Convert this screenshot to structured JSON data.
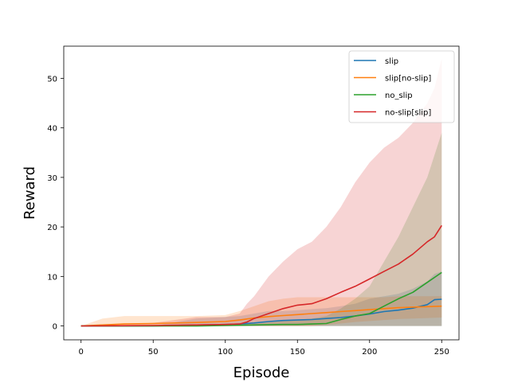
{
  "chart_data": {
    "type": "line",
    "title": "",
    "xlabel": "Episode",
    "ylabel": "Reward",
    "xlim": [
      -12,
      262
    ],
    "ylim": [
      -2.8,
      56.5
    ],
    "xticks": [
      0,
      50,
      100,
      150,
      200,
      250
    ],
    "yticks": [
      0,
      10,
      20,
      30,
      40,
      50
    ],
    "grid": false,
    "legend_position": "top-right",
    "series": [
      {
        "name": "slip",
        "color": "#1f77b4",
        "x": [
          0,
          20,
          50,
          80,
          100,
          110,
          120,
          130,
          140,
          150,
          160,
          170,
          180,
          190,
          200,
          210,
          220,
          230,
          240,
          245,
          250
        ],
        "y": [
          0,
          0,
          0,
          0.2,
          0.3,
          0.4,
          0.6,
          0.9,
          1.1,
          1.2,
          1.3,
          1.5,
          1.7,
          2.0,
          2.4,
          2.9,
          3.2,
          3.6,
          4.3,
          5.3,
          5.4
        ],
        "lower": [
          0,
          0,
          0,
          0,
          0,
          0,
          0,
          0,
          0,
          0,
          0,
          0,
          0,
          0,
          0,
          0,
          0,
          0,
          0,
          0,
          0
        ],
        "upper": [
          0,
          0,
          0,
          1.5,
          1.8,
          2.0,
          2.5,
          3.0,
          3.0,
          3.2,
          3.4,
          3.6,
          4.0,
          4.5,
          5.5,
          6.0,
          6.5,
          7.5,
          9.0,
          10.5,
          11.0
        ]
      },
      {
        "name": "slip[no-slip]",
        "color": "#ff7f0e",
        "x": [
          0,
          15,
          30,
          50,
          80,
          100,
          110,
          120,
          130,
          140,
          150,
          160,
          170,
          180,
          190,
          200,
          210,
          220,
          230,
          240,
          250
        ],
        "y": [
          0,
          0.2,
          0.4,
          0.5,
          0.7,
          0.9,
          1.2,
          1.6,
          1.9,
          2.1,
          2.3,
          2.5,
          2.7,
          2.9,
          3.1,
          3.3,
          3.5,
          3.7,
          3.8,
          3.9,
          4.0
        ],
        "lower": [
          0,
          0,
          0,
          0,
          0,
          0,
          0,
          0,
          0,
          0,
          0,
          0,
          0.2,
          0.5,
          0.8,
          1.0,
          1.2,
          1.4,
          1.5,
          1.6,
          1.7
        ],
        "upper": [
          0,
          1.5,
          2.0,
          2.0,
          2.0,
          2.2,
          3.0,
          4.0,
          5.0,
          5.5,
          5.8,
          5.8,
          5.8,
          5.8,
          5.8,
          5.8,
          5.8,
          6.0,
          6.0,
          6.0,
          6.0
        ]
      },
      {
        "name": "no_slip",
        "color": "#2ca02c",
        "x": [
          0,
          50,
          80,
          100,
          120,
          140,
          150,
          160,
          170,
          180,
          190,
          200,
          210,
          220,
          230,
          240,
          250
        ],
        "y": [
          0,
          0,
          0,
          0.1,
          0.2,
          0.3,
          0.3,
          0.4,
          0.5,
          1.3,
          2.0,
          2.5,
          4.0,
          5.5,
          6.8,
          8.8,
          10.8
        ],
        "lower": [
          0,
          0,
          0,
          0,
          0,
          0,
          0,
          0,
          0,
          0,
          0,
          0,
          0,
          0,
          0,
          0,
          0
        ],
        "upper": [
          0,
          0,
          0,
          0.4,
          0.6,
          1.0,
          1.2,
          1.5,
          2.0,
          3.5,
          5.5,
          8.0,
          13.0,
          18.0,
          24.0,
          30.0,
          39.0
        ]
      },
      {
        "name": "no-slip[slip]",
        "color": "#d62728",
        "x": [
          0,
          50,
          80,
          100,
          110,
          115,
          120,
          130,
          140,
          150,
          160,
          170,
          180,
          190,
          200,
          210,
          220,
          230,
          240,
          245,
          250
        ],
        "y": [
          0,
          0.1,
          0.2,
          0.3,
          0.4,
          0.8,
          1.5,
          2.5,
          3.5,
          4.2,
          4.5,
          5.5,
          6.8,
          8.0,
          9.5,
          11.0,
          12.5,
          14.5,
          17.0,
          18.0,
          20.3
        ],
        "lower": [
          0,
          0,
          0,
          0,
          0,
          0,
          0,
          0,
          0,
          0,
          0,
          0,
          0,
          0,
          0,
          0,
          0,
          0,
          0,
          0,
          0
        ],
        "upper": [
          0,
          0.6,
          1.8,
          1.8,
          2.5,
          4.5,
          6.0,
          10.0,
          13.0,
          15.5,
          17.0,
          20.0,
          24.0,
          29.0,
          33.0,
          36.0,
          38.0,
          41.0,
          45.0,
          48.0,
          54.0
        ]
      }
    ]
  }
}
